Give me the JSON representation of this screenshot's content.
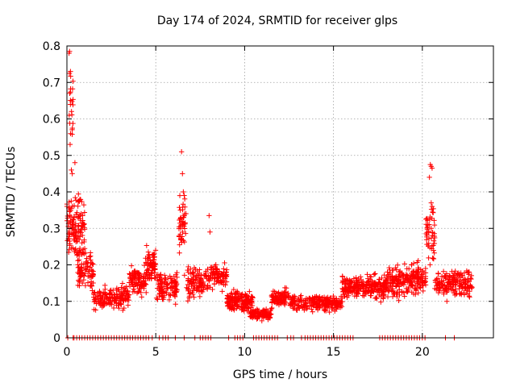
{
  "chart_data": {
    "type": "scatter",
    "title": "Day 174 of 2024, SRMTID for receiver glps",
    "xlabel": "GPS time / hours",
    "ylabel": "SRMTID / TECUs",
    "xlim": [
      0,
      24
    ],
    "ylim": [
      0,
      0.8
    ],
    "xticks": [
      0,
      5,
      10,
      15,
      20
    ],
    "yticks": [
      0,
      0.1,
      0.2,
      0.3,
      0.4,
      0.5,
      0.6,
      0.7,
      0.8
    ],
    "grid": true,
    "marker": "+",
    "series_color": "#ff0000",
    "baseline": [
      [
        0.05,
        0.35,
        0.4,
        0.55,
        0.7,
        0.85,
        1.0,
        1.15,
        1.3,
        1.45,
        1.6,
        1.75,
        1.9,
        2.05,
        2.2,
        2.35,
        2.5,
        2.65,
        2.8,
        2.95,
        3.1,
        3.25,
        3.4,
        3.55,
        3.7,
        3.85,
        4.0,
        4.15,
        4.3,
        4.45,
        4.6,
        4.8,
        5.2,
        5.4,
        5.55,
        5.7,
        6.1,
        6.6,
        7.2,
        7.5,
        7.65,
        7.8,
        7.95,
        8.1,
        9.1,
        9.45,
        9.6,
        9.75,
        9.9,
        10.5,
        10.65,
        10.8,
        10.95,
        11.1,
        11.25,
        11.4,
        11.55,
        11.7,
        11.85,
        12.4,
        12.6,
        12.75,
        13.2,
        13.4,
        13.55,
        13.7,
        13.85,
        14.0,
        14.15,
        14.3,
        14.45,
        14.6,
        14.75,
        14.9,
        15.05,
        15.2,
        15.35,
        15.5,
        15.65,
        15.8,
        15.95,
        16.1,
        17.6,
        17.75,
        17.9,
        18.05,
        18.2,
        18.35,
        18.5,
        18.65,
        18.8,
        18.95,
        19.1,
        19.25,
        19.4,
        19.55,
        19.7,
        19.85,
        20.0,
        20.15,
        21.3,
        21.8
      ],
      0
    ],
    "clusters": [
      {
        "x": [
          0.0,
          1.0
        ],
        "base": 0.3,
        "spread": 0.16,
        "n": 140
      },
      {
        "x": [
          0.15,
          0.35
        ],
        "base": 0.62,
        "spread": 0.18,
        "n": 18
      },
      {
        "x": [
          0.6,
          1.5
        ],
        "base": 0.18,
        "spread": 0.09,
        "n": 80
      },
      {
        "x": [
          1.5,
          3.5
        ],
        "base": 0.11,
        "spread": 0.05,
        "n": 160
      },
      {
        "x": [
          3.5,
          4.5
        ],
        "base": 0.16,
        "spread": 0.06,
        "n": 100
      },
      {
        "x": [
          4.4,
          5.0
        ],
        "base": 0.2,
        "spread": 0.09,
        "n": 70
      },
      {
        "x": [
          5.0,
          6.2
        ],
        "base": 0.14,
        "spread": 0.07,
        "n": 110
      },
      {
        "x": [
          6.3,
          6.7
        ],
        "base": 0.32,
        "spread": 0.16,
        "n": 45
      },
      {
        "x": [
          6.6,
          8.0
        ],
        "base": 0.15,
        "spread": 0.07,
        "n": 110
      },
      {
        "x": [
          8.0,
          9.0
        ],
        "base": 0.17,
        "spread": 0.06,
        "n": 90
      },
      {
        "x": [
          9.0,
          10.5
        ],
        "base": 0.1,
        "spread": 0.05,
        "n": 150
      },
      {
        "x": [
          10.3,
          11.5
        ],
        "base": 0.065,
        "spread": 0.025,
        "n": 110
      },
      {
        "x": [
          11.5,
          12.5
        ],
        "base": 0.11,
        "spread": 0.04,
        "n": 90
      },
      {
        "x": [
          12.5,
          15.5
        ],
        "base": 0.095,
        "spread": 0.035,
        "n": 240
      },
      {
        "x": [
          15.5,
          16.5
        ],
        "base": 0.14,
        "spread": 0.05,
        "n": 110
      },
      {
        "x": [
          16.5,
          18.0
        ],
        "base": 0.14,
        "spread": 0.06,
        "n": 140
      },
      {
        "x": [
          18.0,
          19.0
        ],
        "base": 0.15,
        "spread": 0.07,
        "n": 100
      },
      {
        "x": [
          19.0,
          20.2
        ],
        "base": 0.16,
        "spread": 0.07,
        "n": 120
      },
      {
        "x": [
          20.2,
          20.7
        ],
        "base": 0.28,
        "spread": 0.16,
        "n": 50
      },
      {
        "x": [
          20.7,
          22.8
        ],
        "base": 0.15,
        "spread": 0.06,
        "n": 180
      }
    ],
    "peaks": [
      [
        0.12,
        0.78
      ],
      [
        0.15,
        0.785
      ],
      [
        0.14,
        0.725
      ],
      [
        0.2,
        0.73
      ],
      [
        0.16,
        0.67
      ],
      [
        0.13,
        0.61
      ],
      [
        0.18,
        0.53
      ],
      [
        0.25,
        0.46
      ],
      [
        0.3,
        0.45
      ],
      [
        0.45,
        0.48
      ],
      [
        6.45,
        0.51
      ],
      [
        6.5,
        0.45
      ],
      [
        6.55,
        0.4
      ],
      [
        6.6,
        0.39
      ],
      [
        8.0,
        0.335
      ],
      [
        8.05,
        0.29
      ],
      [
        20.45,
        0.475
      ],
      [
        20.5,
        0.47
      ],
      [
        20.55,
        0.465
      ],
      [
        20.4,
        0.44
      ],
      [
        20.5,
        0.37
      ],
      [
        20.55,
        0.36
      ],
      [
        20.5,
        0.3
      ]
    ]
  }
}
